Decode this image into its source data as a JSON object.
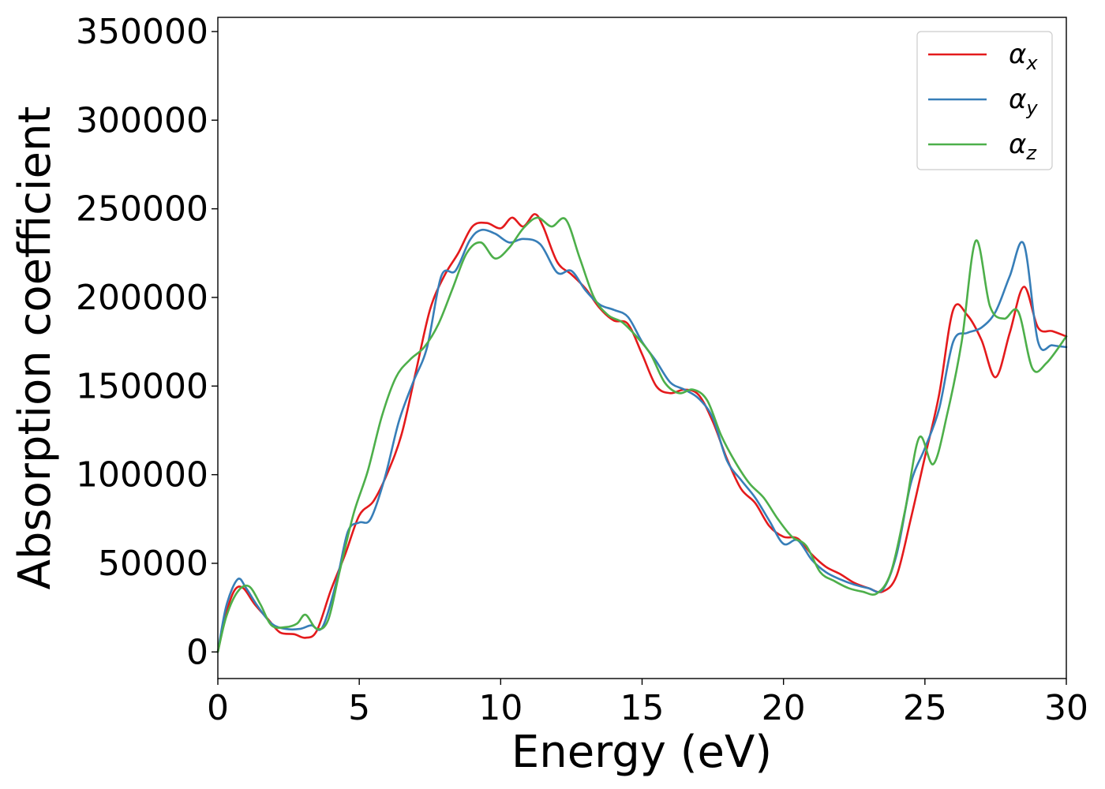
{
  "chart_data": {
    "type": "line",
    "title": "",
    "xlabel": "Energy (eV)",
    "ylabel": "Absorption coefficient",
    "xlim": [
      0,
      30
    ],
    "ylim": [
      -15000,
      358000
    ],
    "xticks": [
      0,
      5,
      10,
      15,
      20,
      25,
      30
    ],
    "yticks": [
      0,
      50000,
      100000,
      150000,
      200000,
      250000,
      300000,
      350000
    ],
    "grid": false,
    "legend": "top-right",
    "series": [
      {
        "name": "α",
        "subscript": "x",
        "color": "#e41a1c",
        "points": [
          [
            0,
            0
          ],
          [
            0.3,
            22000
          ],
          [
            0.6,
            35000
          ],
          [
            0.9,
            36000
          ],
          [
            1.3,
            27000
          ],
          [
            1.8,
            18000
          ],
          [
            2.2,
            11000
          ],
          [
            2.7,
            10000
          ],
          [
            3.1,
            8000
          ],
          [
            3.5,
            12000
          ],
          [
            4.0,
            35000
          ],
          [
            4.5,
            55000
          ],
          [
            5.0,
            77000
          ],
          [
            5.5,
            85000
          ],
          [
            6.0,
            101000
          ],
          [
            6.5,
            123000
          ],
          [
            7.0,
            158000
          ],
          [
            7.5,
            193000
          ],
          [
            8.0,
            212000
          ],
          [
            8.5,
            225000
          ],
          [
            9.0,
            240000
          ],
          [
            9.5,
            242000
          ],
          [
            10.0,
            239000
          ],
          [
            10.4,
            245000
          ],
          [
            10.8,
            240000
          ],
          [
            11.2,
            247000
          ],
          [
            11.5,
            240000
          ],
          [
            12.0,
            220000
          ],
          [
            12.5,
            213000
          ],
          [
            13.0,
            205000
          ],
          [
            13.5,
            194000
          ],
          [
            14.0,
            187000
          ],
          [
            14.5,
            185000
          ],
          [
            15.0,
            168000
          ],
          [
            15.5,
            150000
          ],
          [
            16.0,
            146000
          ],
          [
            16.5,
            148000
          ],
          [
            17.0,
            145000
          ],
          [
            17.5,
            130000
          ],
          [
            18.0,
            109000
          ],
          [
            18.5,
            92000
          ],
          [
            19.0,
            84000
          ],
          [
            19.5,
            71000
          ],
          [
            20.0,
            65000
          ],
          [
            20.5,
            64000
          ],
          [
            21.0,
            55000
          ],
          [
            21.5,
            48000
          ],
          [
            22.0,
            44000
          ],
          [
            22.5,
            39000
          ],
          [
            23.0,
            36000
          ],
          [
            23.5,
            34000
          ],
          [
            24.0,
            43000
          ],
          [
            24.5,
            75000
          ],
          [
            25.0,
            110000
          ],
          [
            25.5,
            145000
          ],
          [
            26.0,
            193000
          ],
          [
            26.5,
            190000
          ],
          [
            27.0,
            176000
          ],
          [
            27.5,
            155000
          ],
          [
            28.0,
            180000
          ],
          [
            28.5,
            206000
          ],
          [
            29.0,
            183000
          ],
          [
            29.5,
            181000
          ],
          [
            30.0,
            178000
          ]
        ]
      },
      {
        "name": "α",
        "subscript": "y",
        "color": "#377eb8",
        "points": [
          [
            0,
            0
          ],
          [
            0.3,
            26000
          ],
          [
            0.7,
            41000
          ],
          [
            1.0,
            36000
          ],
          [
            1.4,
            26000
          ],
          [
            1.9,
            16000
          ],
          [
            2.4,
            13000
          ],
          [
            2.9,
            13000
          ],
          [
            3.3,
            15000
          ],
          [
            3.7,
            14000
          ],
          [
            4.2,
            40000
          ],
          [
            4.6,
            68000
          ],
          [
            5.0,
            73000
          ],
          [
            5.4,
            75000
          ],
          [
            5.9,
            98000
          ],
          [
            6.4,
            130000
          ],
          [
            6.9,
            152000
          ],
          [
            7.4,
            172000
          ],
          [
            7.9,
            212000
          ],
          [
            8.4,
            215000
          ],
          [
            8.9,
            232000
          ],
          [
            9.3,
            238000
          ],
          [
            9.8,
            236000
          ],
          [
            10.3,
            231000
          ],
          [
            10.8,
            233000
          ],
          [
            11.4,
            230000
          ],
          [
            12.0,
            214000
          ],
          [
            12.5,
            215000
          ],
          [
            13.0,
            204000
          ],
          [
            13.5,
            196000
          ],
          [
            14.0,
            193000
          ],
          [
            14.5,
            189000
          ],
          [
            15.0,
            175000
          ],
          [
            15.5,
            164000
          ],
          [
            16.0,
            152000
          ],
          [
            16.5,
            148000
          ],
          [
            17.0,
            143000
          ],
          [
            17.5,
            132000
          ],
          [
            18.0,
            108000
          ],
          [
            18.5,
            97000
          ],
          [
            19.0,
            87000
          ],
          [
            19.5,
            74000
          ],
          [
            20.0,
            61000
          ],
          [
            20.5,
            63000
          ],
          [
            21.0,
            52000
          ],
          [
            21.5,
            45000
          ],
          [
            22.0,
            41000
          ],
          [
            22.5,
            38000
          ],
          [
            23.0,
            36000
          ],
          [
            23.5,
            35000
          ],
          [
            24.0,
            55000
          ],
          [
            24.5,
            95000
          ],
          [
            25.0,
            115000
          ],
          [
            25.5,
            137000
          ],
          [
            26.0,
            175000
          ],
          [
            26.5,
            180000
          ],
          [
            27.0,
            183000
          ],
          [
            27.5,
            192000
          ],
          [
            28.0,
            212000
          ],
          [
            28.5,
            230000
          ],
          [
            29.0,
            175000
          ],
          [
            29.5,
            173000
          ],
          [
            30.0,
            172000
          ]
        ]
      },
      {
        "name": "α",
        "subscript": "z",
        "color": "#4daf4a",
        "points": [
          [
            0,
            0
          ],
          [
            0.3,
            20000
          ],
          [
            0.7,
            34000
          ],
          [
            1.1,
            37000
          ],
          [
            1.5,
            27000
          ],
          [
            1.9,
            15000
          ],
          [
            2.4,
            14000
          ],
          [
            2.8,
            16000
          ],
          [
            3.1,
            21000
          ],
          [
            3.5,
            13000
          ],
          [
            3.9,
            18000
          ],
          [
            4.3,
            45000
          ],
          [
            4.8,
            78000
          ],
          [
            5.3,
            102000
          ],
          [
            5.8,
            133000
          ],
          [
            6.3,
            155000
          ],
          [
            6.8,
            165000
          ],
          [
            7.3,
            172000
          ],
          [
            7.8,
            185000
          ],
          [
            8.3,
            205000
          ],
          [
            8.8,
            225000
          ],
          [
            9.3,
            231000
          ],
          [
            9.8,
            222000
          ],
          [
            10.3,
            228000
          ],
          [
            10.8,
            239000
          ],
          [
            11.3,
            245000
          ],
          [
            11.8,
            240000
          ],
          [
            12.3,
            244000
          ],
          [
            12.8,
            222000
          ],
          [
            13.3,
            200000
          ],
          [
            13.8,
            190000
          ],
          [
            14.3,
            186000
          ],
          [
            14.8,
            178000
          ],
          [
            15.3,
            168000
          ],
          [
            15.8,
            152000
          ],
          [
            16.3,
            146000
          ],
          [
            16.8,
            148000
          ],
          [
            17.3,
            142000
          ],
          [
            17.8,
            122000
          ],
          [
            18.3,
            107000
          ],
          [
            18.8,
            95000
          ],
          [
            19.3,
            87000
          ],
          [
            19.8,
            75000
          ],
          [
            20.3,
            65000
          ],
          [
            20.8,
            60000
          ],
          [
            21.3,
            45000
          ],
          [
            21.8,
            40000
          ],
          [
            22.3,
            36000
          ],
          [
            22.8,
            34000
          ],
          [
            23.3,
            33000
          ],
          [
            23.8,
            45000
          ],
          [
            24.3,
            80000
          ],
          [
            24.8,
            121000
          ],
          [
            25.3,
            106000
          ],
          [
            25.8,
            135000
          ],
          [
            26.3,
            175000
          ],
          [
            26.8,
            232000
          ],
          [
            27.3,
            195000
          ],
          [
            27.8,
            188000
          ],
          [
            28.3,
            192000
          ],
          [
            28.8,
            160000
          ],
          [
            29.3,
            163000
          ],
          [
            30.0,
            178000
          ]
        ]
      }
    ]
  }
}
